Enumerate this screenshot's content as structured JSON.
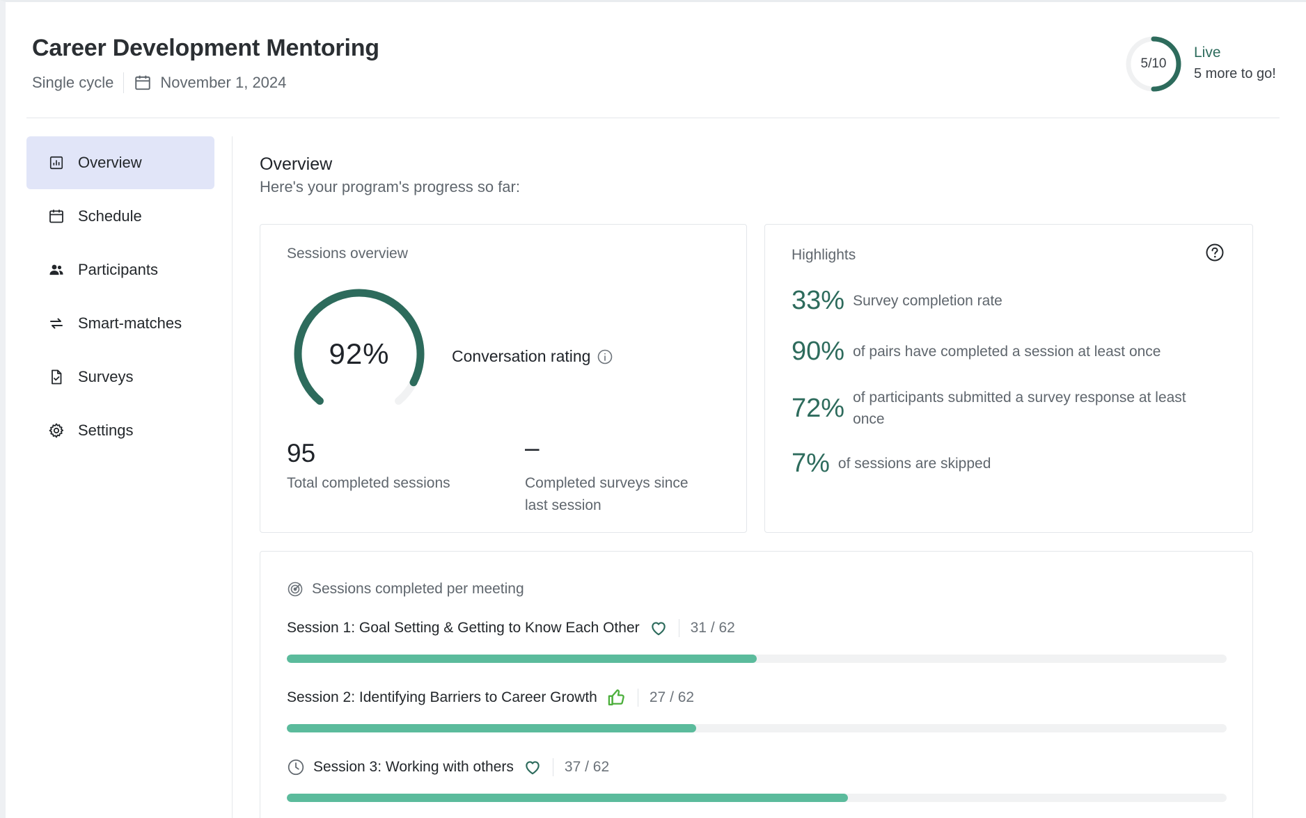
{
  "header": {
    "title": "Career Development Mentoring",
    "cycle": "Single cycle",
    "date": "November 1, 2024",
    "progress_label": "5/10",
    "progress_fraction": 0.5,
    "status": "Live",
    "status_sub": "5 more to go!"
  },
  "sidebar": {
    "items": [
      {
        "label": "Overview",
        "icon": "chart-icon",
        "active": true
      },
      {
        "label": "Schedule",
        "icon": "calendar-icon"
      },
      {
        "label": "Participants",
        "icon": "people-icon"
      },
      {
        "label": "Smart-matches",
        "icon": "swap-arrows-icon"
      },
      {
        "label": "Surveys",
        "icon": "survey-doc-icon"
      },
      {
        "label": "Settings",
        "icon": "gear-icon"
      }
    ]
  },
  "main": {
    "title": "Overview",
    "subtitle": "Here's your program's progress so far:"
  },
  "sessions_overview": {
    "label": "Sessions overview",
    "rating_value": "92%",
    "rating_fraction": 0.92,
    "rating_label": "Conversation rating",
    "total_sessions": "95",
    "total_sessions_label": "Total completed sessions",
    "surveys_since": "–",
    "surveys_since_label_line1": "Completed surveys since",
    "surveys_since_label_line2": "last session"
  },
  "highlights": {
    "label": "Highlights",
    "items": [
      {
        "pct": "33%",
        "text": "Survey completion rate"
      },
      {
        "pct": "90%",
        "text": "of pairs have completed a session at least once"
      },
      {
        "pct": "72%",
        "text_line1": "of participants submitted a survey response at least",
        "text_line2": "once"
      },
      {
        "pct": "7%",
        "text": "of sessions are skipped"
      }
    ]
  },
  "meetings": {
    "label": "Sessions completed per meeting",
    "sessions": [
      {
        "title": "Session 1: Goal Setting & Getting to Know Each Other",
        "count": "31 / 62",
        "completed": 31,
        "total": 62,
        "icon": "heart-icon"
      },
      {
        "title": "Session 2: Identifying Barriers to Career Growth",
        "count": "27 / 62",
        "completed": 27,
        "total": 62,
        "icon": "thumbs-up-icon"
      },
      {
        "title": "Session 3: Working with others",
        "count": "37 / 62",
        "completed": 37,
        "total": 62,
        "icon": "heart-icon",
        "pending_icon": "clock-icon"
      }
    ]
  },
  "colors": {
    "accent": "#2d6b5c",
    "bar": "#5bbb9c",
    "nav_active": "#e1e5f8",
    "thumbs": "#4caf3c"
  }
}
